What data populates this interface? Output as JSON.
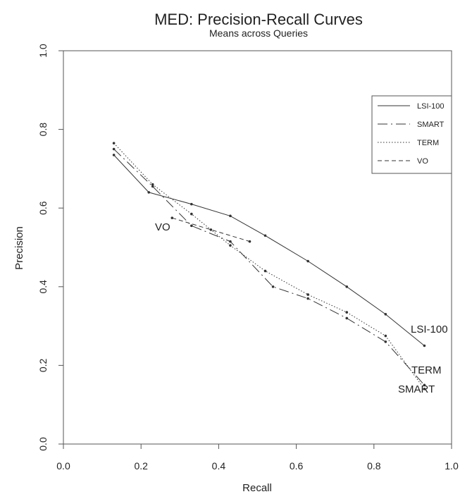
{
  "chart_data": {
    "type": "line",
    "title": "MED: Precision-Recall Curves",
    "subtitle": "Means across Queries",
    "xlabel": "Recall",
    "ylabel": "Precision",
    "xlim": [
      0.0,
      1.0
    ],
    "ylim": [
      0.0,
      1.0
    ],
    "xticks": [
      "0.0",
      "0.2",
      "0.4",
      "0.6",
      "0.8",
      "1.0"
    ],
    "yticks": [
      "0.0",
      "0.2",
      "0.4",
      "0.6",
      "0.8",
      "1.0"
    ],
    "grid": false,
    "legend_position": "top-right",
    "series": [
      {
        "name": "LSI-100",
        "style": "solid",
        "label": "LSI-100",
        "x": [
          0.13,
          0.22,
          0.33,
          0.43,
          0.52,
          0.63,
          0.73,
          0.83,
          0.93
        ],
        "y": [
          0.735,
          0.64,
          0.61,
          0.58,
          0.53,
          0.465,
          0.4,
          0.33,
          0.25
        ]
      },
      {
        "name": "SMART",
        "style": "longdash",
        "label": "SMART",
        "x": [
          0.13,
          0.23,
          0.33,
          0.43,
          0.54,
          0.63,
          0.73,
          0.83,
          0.93
        ],
        "y": [
          0.75,
          0.655,
          0.555,
          0.515,
          0.4,
          0.37,
          0.32,
          0.26,
          0.15
        ]
      },
      {
        "name": "TERM",
        "style": "dotted",
        "label": "TERM",
        "x": [
          0.13,
          0.23,
          0.33,
          0.43,
          0.52,
          0.63,
          0.73,
          0.83,
          0.93
        ],
        "y": [
          0.765,
          0.66,
          0.585,
          0.505,
          0.44,
          0.38,
          0.335,
          0.275,
          0.14
        ]
      },
      {
        "name": "VO",
        "style": "dashed",
        "label": "VO",
        "x": [
          0.28,
          0.38,
          0.48
        ],
        "y": [
          0.575,
          0.545,
          0.515
        ]
      }
    ]
  }
}
